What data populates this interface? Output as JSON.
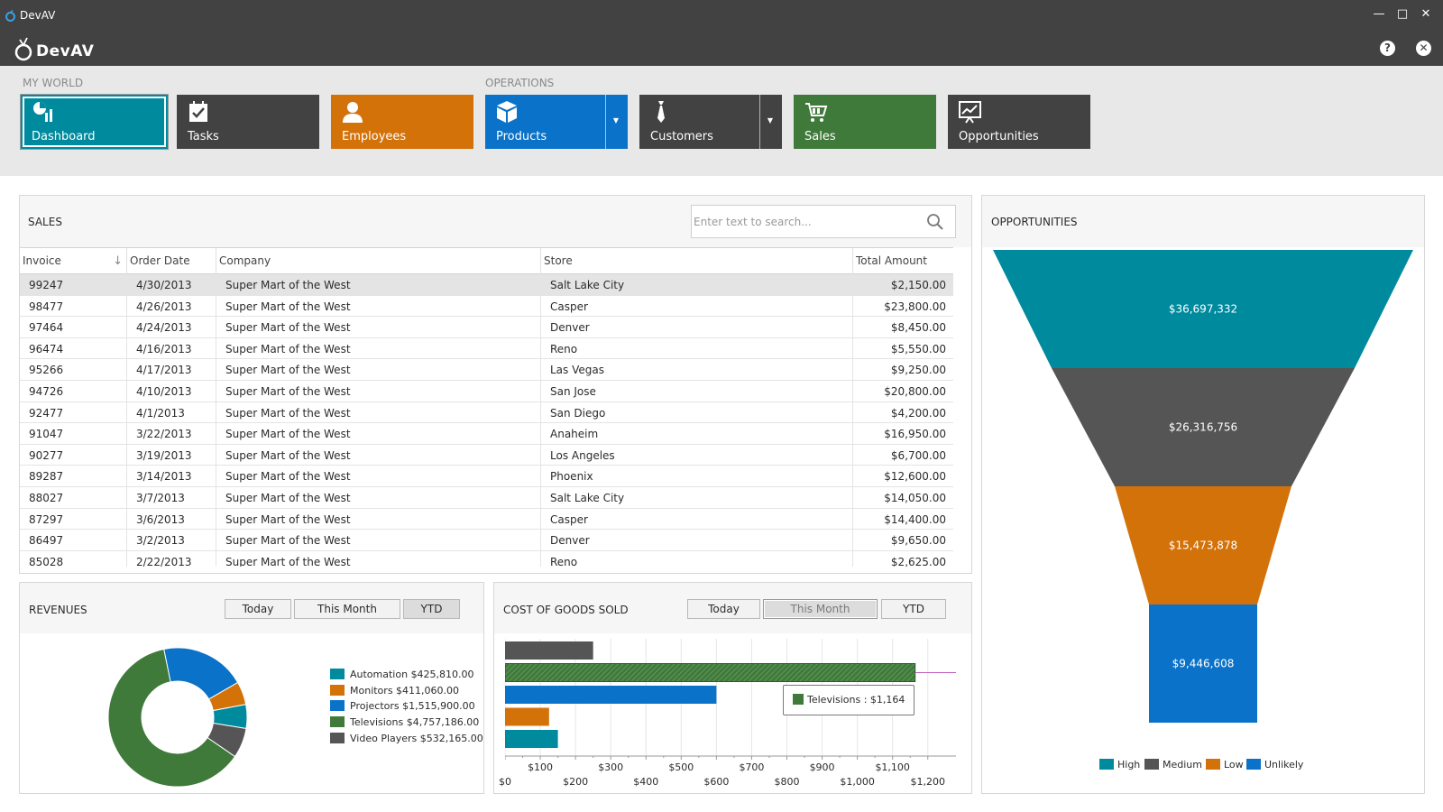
{
  "window": {
    "title": "DevAV",
    "logo_text": "DevAV"
  },
  "ribbon": {
    "groups": [
      {
        "label": "MY WORLD"
      },
      {
        "label": "OPERATIONS"
      }
    ],
    "tiles": [
      {
        "label": "Dashboard",
        "color": "#008a9e",
        "icon": "dashboard-icon"
      },
      {
        "label": "Tasks",
        "color": "#424242",
        "icon": "tasks-icon"
      },
      {
        "label": "Employees",
        "color": "#d4720a",
        "icon": "employee-icon"
      },
      {
        "label": "Products",
        "color": "#0a72c8",
        "icon": "box-icon"
      },
      {
        "label": "Customers",
        "color": "#424242",
        "icon": "tie-icon"
      },
      {
        "label": "Sales",
        "color": "#3f7a3a",
        "icon": "cart-icon"
      },
      {
        "label": "Opportunities",
        "color": "#424242",
        "icon": "chart-up-icon"
      }
    ]
  },
  "sales": {
    "title": "SALES",
    "search_placeholder": "Enter text to search...",
    "columns": [
      "Invoice",
      "Order Date",
      "Company",
      "Store",
      "Total Amount"
    ],
    "rows": [
      [
        "99247",
        "4/30/2013",
        "Super Mart of the West",
        "Salt Lake City",
        "$2,150.00"
      ],
      [
        "98477",
        "4/26/2013",
        "Super Mart of the West",
        "Casper",
        "$23,800.00"
      ],
      [
        "97464",
        "4/24/2013",
        "Super Mart of the West",
        "Denver",
        "$8,450.00"
      ],
      [
        "96474",
        "4/16/2013",
        "Super Mart of the West",
        "Reno",
        "$5,550.00"
      ],
      [
        "95266",
        "4/17/2013",
        "Super Mart of the West",
        "Las Vegas",
        "$9,250.00"
      ],
      [
        "94726",
        "4/10/2013",
        "Super Mart of the West",
        "San Jose",
        "$20,800.00"
      ],
      [
        "92477",
        "4/1/2013",
        "Super Mart of the West",
        "San Diego",
        "$4,200.00"
      ],
      [
        "91047",
        "3/22/2013",
        "Super Mart of the West",
        "Anaheim",
        "$16,950.00"
      ],
      [
        "90277",
        "3/19/2013",
        "Super Mart of the West",
        "Los Angeles",
        "$6,700.00"
      ],
      [
        "89287",
        "3/14/2013",
        "Super Mart of the West",
        "Phoenix",
        "$12,600.00"
      ],
      [
        "88027",
        "3/7/2013",
        "Super Mart of the West",
        "Salt Lake City",
        "$14,050.00"
      ],
      [
        "87297",
        "3/6/2013",
        "Super Mart of the West",
        "Casper",
        "$14,400.00"
      ],
      [
        "86497",
        "3/2/2013",
        "Super Mart of the West",
        "Denver",
        "$9,650.00"
      ],
      [
        "85028",
        "2/22/2013",
        "Super Mart of the West",
        "Reno",
        "$2,625.00"
      ]
    ]
  },
  "revenues": {
    "title": "REVENUES",
    "tabs": [
      "Today",
      "This Month",
      "YTD"
    ],
    "active_tab": 2
  },
  "cogs": {
    "title": "COST OF GOODS SOLD",
    "tabs": [
      "Today",
      "This Month",
      "YTD"
    ],
    "active_tab": 1,
    "tooltip": "Televisions : $1,164"
  },
  "opportunities": {
    "title": "OPPORTUNITIES"
  },
  "chart_data": [
    {
      "type": "pie",
      "variant": "donut",
      "categories": [
        "Automation",
        "Monitors",
        "Projectors",
        "Televisions",
        "Video Players"
      ],
      "values": [
        425810,
        411060,
        1515900,
        4757186,
        532165
      ],
      "legend": [
        "Automation $425,810.00",
        "Monitors $411,060.00",
        "Projectors $1,515,900.00",
        "Televisions $4,757,186.00",
        "Video Players $532,165.00"
      ],
      "colors": [
        "#008a9e",
        "#d4720a",
        "#0a72c8",
        "#3f7a3a",
        "#555555"
      ],
      "legend_position": "right"
    },
    {
      "type": "bar",
      "orientation": "horizontal",
      "categories": [
        "Video Players",
        "Televisions",
        "Projectors",
        "Monitors",
        "Automation"
      ],
      "values": [
        250,
        1164,
        600,
        125,
        150
      ],
      "colors": [
        "#555555",
        "#3f7a3a",
        "#0a72c8",
        "#d4720a",
        "#008a9e"
      ],
      "xlim": [
        0,
        1280
      ],
      "x_ticks_top_row": [
        "$100",
        "$300",
        "$500",
        "$700",
        "$900",
        "$1,100"
      ],
      "x_ticks_bottom_row": [
        "$0",
        "$200",
        "$400",
        "$600",
        "$800",
        "$1,000",
        "$1,200"
      ],
      "highlighted": "Televisions",
      "grid": true
    },
    {
      "type": "funnel",
      "values": [
        36697332,
        26316756,
        15473878,
        9446608
      ],
      "labels": [
        "$36,697,332",
        "$26,316,756",
        "$15,473,878",
        "$9,446,608"
      ],
      "series": [
        "High",
        "Medium",
        "Low",
        "Unlikely"
      ],
      "colors": [
        "#008a9e",
        "#555555",
        "#d4720a",
        "#0a72c8"
      ],
      "legend_position": "bottom"
    }
  ]
}
